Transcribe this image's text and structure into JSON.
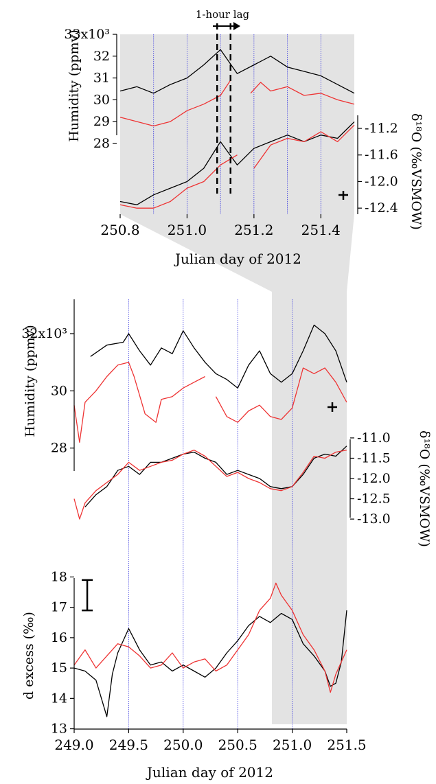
{
  "colors": {
    "black_series": "#000000",
    "red_series": "#ee3333",
    "shade": "#e3e3e3",
    "vline": "#3a3ae0"
  },
  "chart_data": [
    {
      "type": "line",
      "panel": "top-zoom",
      "annotation": "1-hour lag",
      "xlabel": "Julian day of 2012",
      "x_ticks": [
        "250.8",
        "251.0",
        "251.2",
        "251.4"
      ],
      "xlim": [
        250.8,
        251.5
      ],
      "left_axis": {
        "label": "Humidity (ppmv)",
        "ylim": [
          27.4,
          33
        ],
        "ticks": [
          "33x10³",
          "32",
          "31",
          "30",
          "29",
          "28"
        ],
        "tick_values": [
          33,
          32,
          31,
          30,
          29,
          28
        ]
      },
      "right_axis": {
        "label": "δ¹⁸O (‰VSMOW)",
        "ylim": [
          -12.45,
          -10.9
        ],
        "ticks": [
          "-11.2",
          "-11.6",
          "-12.0",
          "-12.4"
        ],
        "tick_values": [
          -11.2,
          -11.6,
          -12.0,
          -12.4
        ]
      },
      "lag_lines_x": [
        251.09,
        251.13
      ],
      "vlines_x": [
        250.9,
        251.0,
        251.1,
        251.2,
        251.3,
        251.4
      ],
      "series": [
        {
          "axis": "left",
          "color": "black",
          "x": [
            250.8,
            250.85,
            250.9,
            250.95,
            251.0,
            251.05,
            251.1,
            251.15,
            251.2,
            251.25,
            251.3,
            251.35,
            251.4,
            251.45,
            251.5
          ],
          "y": [
            30.4,
            30.6,
            30.3,
            30.7,
            31.0,
            31.6,
            32.3,
            31.2,
            31.6,
            32.0,
            31.5,
            31.3,
            31.1,
            30.7,
            30.3
          ]
        },
        {
          "axis": "left",
          "color": "red",
          "x": [
            250.8,
            250.85,
            250.9,
            250.95,
            251.0,
            251.05,
            251.1,
            251.13,
            251.16,
            251.19,
            251.22,
            251.25,
            251.3,
            251.35,
            251.4,
            251.45,
            251.5
          ],
          "y": [
            29.2,
            29.0,
            28.8,
            29.0,
            29.5,
            29.8,
            30.2,
            30.9,
            null,
            30.3,
            30.8,
            30.4,
            30.6,
            30.2,
            30.3,
            30.0,
            29.8
          ]
        },
        {
          "axis": "right",
          "color": "black",
          "x": [
            250.8,
            250.85,
            250.9,
            250.95,
            251.0,
            251.05,
            251.1,
            251.15,
            251.2,
            251.25,
            251.3,
            251.35,
            251.4,
            251.45,
            251.5
          ],
          "y": [
            -12.3,
            -12.35,
            -12.2,
            -12.1,
            -12.0,
            -11.8,
            -11.4,
            -11.75,
            -11.5,
            -11.4,
            -11.3,
            -11.4,
            -11.3,
            -11.35,
            -11.1
          ]
        },
        {
          "axis": "right",
          "color": "red",
          "x": [
            250.8,
            250.85,
            250.9,
            250.95,
            251.0,
            251.05,
            251.1,
            251.15,
            251.17,
            251.2,
            251.25,
            251.3,
            251.35,
            251.4,
            251.45,
            251.5
          ],
          "y": [
            -12.35,
            -12.4,
            -12.4,
            -12.3,
            -12.1,
            -12.0,
            -11.75,
            -11.6,
            null,
            -11.8,
            -11.45,
            -11.35,
            -11.4,
            -11.25,
            -11.4,
            -11.15
          ]
        }
      ]
    },
    {
      "type": "line",
      "panel": "bottom-main",
      "xlabel": "Julian day of 2012",
      "x_ticks": [
        "249.0",
        "249.5",
        "250.0",
        "250.5",
        "251.0",
        "251.5"
      ],
      "xlim": [
        249.0,
        251.5
      ],
      "shaded_region_x": [
        250.8,
        251.5
      ],
      "vlines_x": [
        249.5,
        250.0,
        250.5,
        251.0
      ],
      "humidity": {
        "label": "Humidity (ppmv)",
        "ylim": [
          27.2,
          33.2
        ],
        "ticks": [
          "32x10³",
          "30",
          "28"
        ],
        "tick_values": [
          32,
          30,
          28
        ],
        "series": [
          {
            "color": "black",
            "x": [
              249.15,
              249.3,
              249.45,
              249.5,
              249.6,
              249.7,
              249.8,
              249.9,
              250.0,
              250.1,
              250.2,
              250.3,
              250.4,
              250.5,
              250.6,
              250.7,
              250.8,
              250.9,
              251.0,
              251.1,
              251.2,
              251.3,
              251.4,
              251.5
            ],
            "y": [
              31.2,
              31.6,
              31.7,
              32.0,
              31.4,
              30.9,
              31.5,
              31.3,
              32.1,
              31.5,
              31.0,
              30.6,
              30.4,
              30.1,
              30.9,
              31.4,
              30.6,
              30.3,
              30.6,
              31.4,
              32.3,
              32.0,
              31.4,
              30.3
            ]
          },
          {
            "color": "red",
            "x": [
              249.0,
              249.05,
              249.1,
              249.2,
              249.3,
              249.4,
              249.5,
              249.55,
              249.65,
              249.75,
              249.8,
              249.9,
              250.0,
              250.1,
              250.2,
              250.25,
              250.3,
              250.4,
              250.5,
              250.6,
              250.7,
              250.8,
              250.9,
              251.0,
              251.1,
              251.2,
              251.3,
              251.4,
              251.5
            ],
            "y": [
              29.5,
              28.2,
              29.6,
              30.0,
              30.5,
              30.9,
              31.0,
              30.5,
              29.2,
              28.9,
              29.7,
              29.8,
              30.1,
              30.3,
              30.5,
              null,
              29.8,
              29.1,
              28.9,
              29.3,
              29.5,
              29.1,
              29.0,
              29.4,
              30.8,
              30.6,
              30.8,
              30.3,
              29.6
            ]
          }
        ]
      },
      "d18O": {
        "label": "δ¹⁸O (‰VSMOW)",
        "ylim": [
          -13.1,
          -10.9
        ],
        "ticks": [
          "-11.0",
          "-11.5",
          "-12.0",
          "-12.5",
          "-13.0"
        ],
        "tick_values": [
          -11.0,
          -11.5,
          -12.0,
          -12.5,
          -13.0
        ],
        "series": [
          {
            "color": "black",
            "x": [
              249.1,
              249.2,
              249.3,
              249.4,
              249.5,
              249.6,
              249.7,
              249.8,
              249.9,
              250.0,
              250.1,
              250.2,
              250.3,
              250.4,
              250.5,
              250.6,
              250.7,
              250.8,
              250.9,
              251.0,
              251.1,
              251.2,
              251.3,
              251.4,
              251.5
            ],
            "y": [
              -12.7,
              -12.4,
              -12.2,
              -11.8,
              -11.7,
              -11.9,
              -11.6,
              -11.6,
              -11.5,
              -11.4,
              -11.35,
              -11.5,
              -11.6,
              -11.9,
              -11.8,
              -11.9,
              -12.0,
              -12.2,
              -12.25,
              -12.2,
              -11.9,
              -11.5,
              -11.4,
              -11.45,
              -11.2
            ]
          },
          {
            "color": "red",
            "x": [
              249.0,
              249.05,
              249.1,
              249.2,
              249.3,
              249.4,
              249.5,
              249.6,
              249.7,
              249.8,
              249.9,
              250.0,
              250.1,
              250.2,
              250.3,
              250.4,
              250.5,
              250.6,
              250.7,
              250.8,
              250.9,
              251.0,
              251.1,
              251.2,
              251.3,
              251.4,
              251.5
            ],
            "y": [
              -12.5,
              -13.0,
              -12.6,
              -12.3,
              -12.1,
              -11.9,
              -11.6,
              -11.8,
              -11.7,
              -11.6,
              -11.55,
              -11.4,
              -11.3,
              -11.45,
              -11.7,
              -11.95,
              -11.85,
              -12.0,
              -12.1,
              -12.25,
              -12.3,
              -12.2,
              -11.85,
              -11.45,
              -11.5,
              -11.35,
              -11.3
            ]
          }
        ]
      },
      "d_excess": {
        "label": "d excess (‰)",
        "ylim": [
          12.9,
          18.1
        ],
        "ticks": [
          "18",
          "17",
          "16",
          "15",
          "14",
          "13"
        ],
        "tick_values": [
          18,
          17,
          16,
          15,
          14,
          13
        ],
        "series": [
          {
            "color": "black",
            "x": [
              249.0,
              249.1,
              249.2,
              249.25,
              249.3,
              249.35,
              249.4,
              249.5,
              249.6,
              249.7,
              249.8,
              249.9,
              250.0,
              250.1,
              250.2,
              250.3,
              250.4,
              250.5,
              250.6,
              250.7,
              250.8,
              250.9,
              251.0,
              251.1,
              251.2,
              251.3,
              251.35,
              251.4,
              251.45,
              251.5
            ],
            "y": [
              15.0,
              14.9,
              14.6,
              14.0,
              13.4,
              14.8,
              15.5,
              16.3,
              15.6,
              15.1,
              15.2,
              14.9,
              15.1,
              14.9,
              14.7,
              15.0,
              15.5,
              15.9,
              16.4,
              16.7,
              16.5,
              16.8,
              16.6,
              15.8,
              15.4,
              14.9,
              14.4,
              14.5,
              15.2,
              16.9
            ]
          },
          {
            "color": "red",
            "x": [
              249.0,
              249.1,
              249.2,
              249.3,
              249.4,
              249.5,
              249.6,
              249.7,
              249.8,
              249.9,
              250.0,
              250.1,
              250.2,
              250.3,
              250.4,
              250.5,
              250.6,
              250.7,
              250.8,
              250.85,
              250.9,
              251.0,
              251.1,
              251.2,
              251.3,
              251.35,
              251.4,
              251.5
            ],
            "y": [
              15.1,
              15.6,
              15.0,
              15.4,
              15.8,
              15.7,
              15.4,
              15.0,
              15.1,
              15.5,
              15.0,
              15.2,
              15.3,
              14.9,
              15.1,
              15.6,
              16.1,
              16.9,
              17.3,
              17.8,
              17.4,
              16.9,
              16.1,
              15.6,
              14.9,
              14.2,
              14.8,
              15.6
            ]
          }
        ]
      },
      "error_bar": {
        "panel": "d_excess",
        "x": 249.12,
        "y_low": 16.9,
        "y_high": 17.9
      }
    }
  ]
}
